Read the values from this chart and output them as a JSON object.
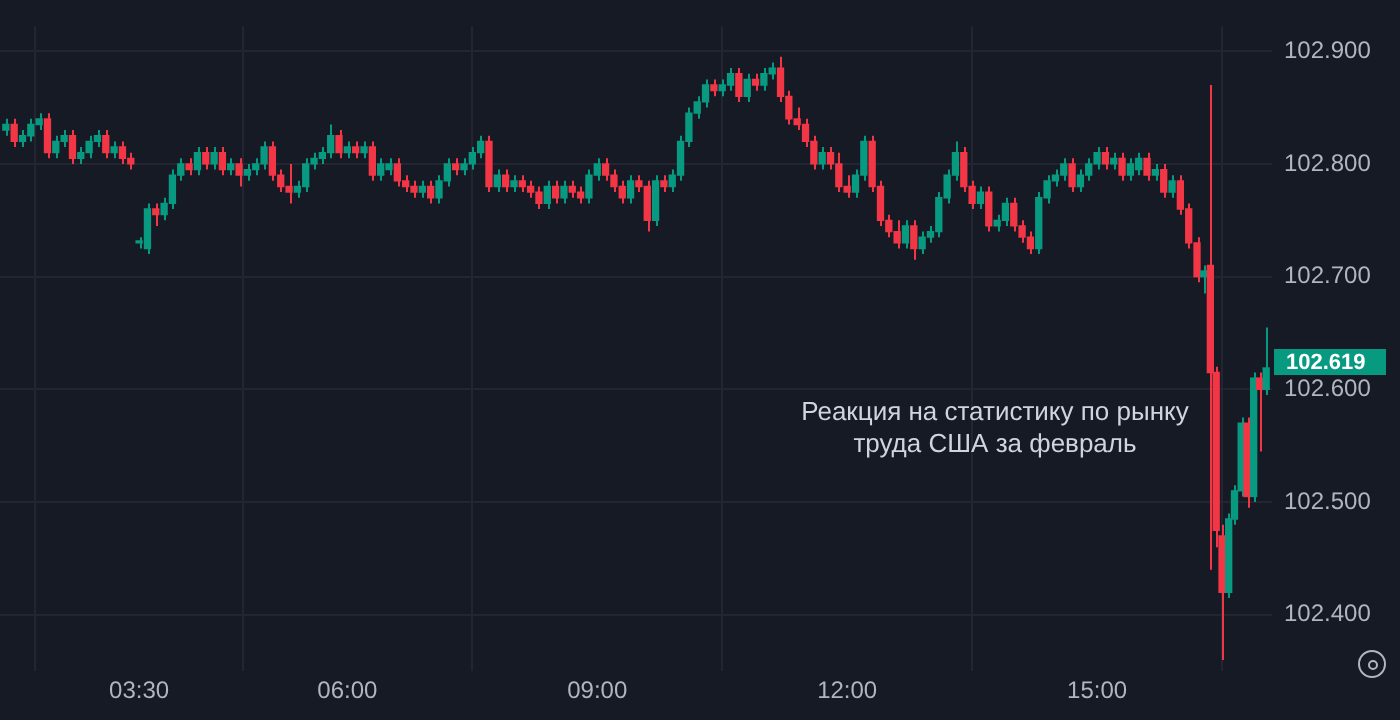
{
  "chart_data": {
    "type": "candlestick",
    "x": [
      1.9,
      2.0,
      2.1,
      2.2,
      2.3,
      2.4,
      2.5,
      2.6,
      2.7,
      2.8,
      2.9,
      3.0,
      3.1,
      3.2,
      3.3,
      3.4,
      3.5,
      3.6,
      3.7,
      3.8,
      3.9,
      4.0,
      4.1,
      4.2,
      4.3,
      4.4,
      4.5,
      4.6,
      4.7,
      4.8,
      4.9,
      5.0,
      5.1,
      5.2,
      5.3,
      5.4,
      5.5,
      5.6,
      5.7,
      5.8,
      5.9,
      6.0,
      6.1,
      6.2,
      6.3,
      6.4,
      6.5,
      6.6,
      6.7,
      6.8,
      6.9,
      7.0,
      7.1,
      7.2,
      7.3,
      7.4,
      7.5,
      7.6,
      7.7,
      7.8,
      7.9,
      8.0,
      8.1,
      8.2,
      8.3,
      8.4,
      8.5,
      8.6,
      8.7,
      8.8,
      8.9,
      9.0,
      9.1,
      9.2,
      9.3,
      9.4,
      9.5,
      9.6,
      9.7,
      9.8,
      9.9,
      10.0,
      10.1,
      10.2,
      10.3,
      10.4,
      10.5,
      10.6,
      10.7,
      10.8,
      10.9,
      11.0,
      11.1,
      11.2,
      11.3,
      11.4,
      11.5,
      11.6,
      11.7,
      11.8,
      11.9,
      12.0,
      12.1,
      12.2,
      12.3,
      12.4,
      12.5,
      12.6,
      12.7,
      12.8,
      12.9,
      13.0,
      13.1,
      13.2,
      13.3,
      13.4,
      13.5,
      13.6,
      13.7,
      13.8,
      13.9,
      14.0,
      14.1,
      14.2,
      14.3,
      14.4,
      14.5,
      14.6,
      14.7,
      14.8,
      14.9,
      15.0,
      15.1,
      15.2,
      15.3,
      15.4,
      15.5,
      15.6,
      15.7,
      15.8,
      15.9,
      16.0,
      16.1,
      16.2,
      16.28,
      16.36,
      16.43,
      16.5,
      16.58,
      16.65,
      16.73,
      16.8,
      16.88,
      16.95,
      17.03
    ],
    "ohlc": [
      [
        102.83,
        102.84,
        102.825,
        102.835
      ],
      [
        102.835,
        102.84,
        102.815,
        102.82
      ],
      [
        102.82,
        102.83,
        102.815,
        102.825
      ],
      [
        102.825,
        102.84,
        102.82,
        102.835
      ],
      [
        102.835,
        102.845,
        102.83,
        102.84
      ],
      [
        102.84,
        102.845,
        102.805,
        102.81
      ],
      [
        102.81,
        102.825,
        102.805,
        102.82
      ],
      [
        102.82,
        102.83,
        102.815,
        102.825
      ],
      [
        102.825,
        102.83,
        102.8,
        102.805
      ],
      [
        102.805,
        102.815,
        102.8,
        102.81
      ],
      [
        102.81,
        102.825,
        102.805,
        102.82
      ],
      [
        102.82,
        102.83,
        102.815,
        102.825
      ],
      [
        102.825,
        102.83,
        102.805,
        102.81
      ],
      [
        102.81,
        102.82,
        102.805,
        102.815
      ],
      [
        102.815,
        102.82,
        102.8,
        102.805
      ],
      [
        102.805,
        102.81,
        102.795,
        102.8
      ],
      [
        102.73,
        102.735,
        102.725,
        102.73
      ],
      [
        102.725,
        102.765,
        102.72,
        102.76
      ],
      [
        102.76,
        102.765,
        102.745,
        102.755
      ],
      [
        102.755,
        102.77,
        102.75,
        102.765
      ],
      [
        102.765,
        102.795,
        102.76,
        102.79
      ],
      [
        102.79,
        102.805,
        102.785,
        102.8
      ],
      [
        102.8,
        102.805,
        102.79,
        102.795
      ],
      [
        102.795,
        102.815,
        102.79,
        102.81
      ],
      [
        102.81,
        102.815,
        102.795,
        102.8
      ],
      [
        102.8,
        102.815,
        102.795,
        102.81
      ],
      [
        102.81,
        102.815,
        102.79,
        102.795
      ],
      [
        102.795,
        102.805,
        102.79,
        102.8
      ],
      [
        102.8,
        102.805,
        102.78,
        102.79
      ],
      [
        102.79,
        102.8,
        102.785,
        102.795
      ],
      [
        102.795,
        102.805,
        102.79,
        102.8
      ],
      [
        102.8,
        102.82,
        102.795,
        102.815
      ],
      [
        102.815,
        102.82,
        102.785,
        102.79
      ],
      [
        102.79,
        102.795,
        102.775,
        102.78
      ],
      [
        102.78,
        102.8,
        102.765,
        102.775
      ],
      [
        102.775,
        102.785,
        102.77,
        102.78
      ],
      [
        102.78,
        102.805,
        102.775,
        102.8
      ],
      [
        102.8,
        102.81,
        102.795,
        102.805
      ],
      [
        102.805,
        102.815,
        102.8,
        102.81
      ],
      [
        102.81,
        102.835,
        102.805,
        102.825
      ],
      [
        102.825,
        102.83,
        102.805,
        102.81
      ],
      [
        102.81,
        102.82,
        102.805,
        102.815
      ],
      [
        102.815,
        102.82,
        102.805,
        102.81
      ],
      [
        102.81,
        102.82,
        102.805,
        102.815
      ],
      [
        102.815,
        102.82,
        102.785,
        102.79
      ],
      [
        102.79,
        102.805,
        102.785,
        102.8
      ],
      [
        102.795,
        102.805,
        102.79,
        102.8
      ],
      [
        102.8,
        102.805,
        102.78,
        102.785
      ],
      [
        102.785,
        102.79,
        102.775,
        102.78
      ],
      [
        102.78,
        102.785,
        102.77,
        102.775
      ],
      [
        102.775,
        102.785,
        102.77,
        102.78
      ],
      [
        102.78,
        102.785,
        102.765,
        102.77
      ],
      [
        102.77,
        102.79,
        102.765,
        102.785
      ],
      [
        102.785,
        102.805,
        102.78,
        102.8
      ],
      [
        102.8,
        102.805,
        102.79,
        102.795
      ],
      [
        102.795,
        102.805,
        102.79,
        102.8
      ],
      [
        102.8,
        102.815,
        102.795,
        102.81
      ],
      [
        102.81,
        102.825,
        102.805,
        102.82
      ],
      [
        102.82,
        102.825,
        102.775,
        102.78
      ],
      [
        102.78,
        102.795,
        102.775,
        102.79
      ],
      [
        102.79,
        102.795,
        102.775,
        102.78
      ],
      [
        102.78,
        102.79,
        102.775,
        102.785
      ],
      [
        102.785,
        102.79,
        102.775,
        102.78
      ],
      [
        102.78,
        102.785,
        102.77,
        102.775
      ],
      [
        102.775,
        102.78,
        102.76,
        102.765
      ],
      [
        102.765,
        102.785,
        102.76,
        102.78
      ],
      [
        102.78,
        102.785,
        102.765,
        102.77
      ],
      [
        102.77,
        102.785,
        102.765,
        102.78
      ],
      [
        102.78,
        102.785,
        102.77,
        102.775
      ],
      [
        102.775,
        102.78,
        102.765,
        102.77
      ],
      [
        102.77,
        102.795,
        102.765,
        102.79
      ],
      [
        102.79,
        102.805,
        102.785,
        102.8
      ],
      [
        102.8,
        102.805,
        102.785,
        102.79
      ],
      [
        102.79,
        102.795,
        102.775,
        102.78
      ],
      [
        102.78,
        102.785,
        102.765,
        102.77
      ],
      [
        102.77,
        102.79,
        102.765,
        102.785
      ],
      [
        102.785,
        102.79,
        102.775,
        102.78
      ],
      [
        102.78,
        102.785,
        102.74,
        102.75
      ],
      [
        102.75,
        102.79,
        102.745,
        102.785
      ],
      [
        102.785,
        102.79,
        102.775,
        102.78
      ],
      [
        102.78,
        102.795,
        102.775,
        102.79
      ],
      [
        102.79,
        102.825,
        102.785,
        102.82
      ],
      [
        102.82,
        102.85,
        102.815,
        102.845
      ],
      [
        102.845,
        102.86,
        102.84,
        102.855
      ],
      [
        102.855,
        102.875,
        102.85,
        102.87
      ],
      [
        102.87,
        102.875,
        102.86,
        102.865
      ],
      [
        102.865,
        102.875,
        102.86,
        102.87
      ],
      [
        102.87,
        102.885,
        102.865,
        102.88
      ],
      [
        102.88,
        102.885,
        102.855,
        102.86
      ],
      [
        102.86,
        102.88,
        102.855,
        102.875
      ],
      [
        102.875,
        102.88,
        102.865,
        102.87
      ],
      [
        102.87,
        102.885,
        102.865,
        102.88
      ],
      [
        102.88,
        102.89,
        102.875,
        102.885
      ],
      [
        102.885,
        102.895,
        102.855,
        102.86
      ],
      [
        102.86,
        102.865,
        102.835,
        102.84
      ],
      [
        102.84,
        102.85,
        102.83,
        102.835
      ],
      [
        102.835,
        102.84,
        102.815,
        102.82
      ],
      [
        102.82,
        102.825,
        102.795,
        102.8
      ],
      [
        102.8,
        102.815,
        102.795,
        102.81
      ],
      [
        102.81,
        102.815,
        102.795,
        102.8
      ],
      [
        102.8,
        102.81,
        102.775,
        102.78
      ],
      [
        102.78,
        102.79,
        102.77,
        102.775
      ],
      [
        102.775,
        102.795,
        102.77,
        102.79
      ],
      [
        102.79,
        102.825,
        102.785,
        102.82
      ],
      [
        102.82,
        102.825,
        102.775,
        102.78
      ],
      [
        102.78,
        102.785,
        102.745,
        102.75
      ],
      [
        102.75,
        102.755,
        102.735,
        102.74
      ],
      [
        102.74,
        102.75,
        102.725,
        102.73
      ],
      [
        102.73,
        102.75,
        102.725,
        102.745
      ],
      [
        102.745,
        102.75,
        102.715,
        102.725
      ],
      [
        102.725,
        102.74,
        102.72,
        102.735
      ],
      [
        102.735,
        102.745,
        102.73,
        102.74
      ],
      [
        102.74,
        102.775,
        102.735,
        102.77
      ],
      [
        102.77,
        102.795,
        102.765,
        102.79
      ],
      [
        102.79,
        102.82,
        102.785,
        102.81
      ],
      [
        102.81,
        102.815,
        102.775,
        102.78
      ],
      [
        102.78,
        102.785,
        102.76,
        102.765
      ],
      [
        102.765,
        102.78,
        102.76,
        102.775
      ],
      [
        102.775,
        102.78,
        102.74,
        102.745
      ],
      [
        102.745,
        102.755,
        102.74,
        102.75
      ],
      [
        102.75,
        102.77,
        102.745,
        102.765
      ],
      [
        102.765,
        102.77,
        102.74,
        102.745
      ],
      [
        102.745,
        102.75,
        102.73,
        102.735
      ],
      [
        102.735,
        102.74,
        102.72,
        102.725
      ],
      [
        102.725,
        102.775,
        102.72,
        102.77
      ],
      [
        102.77,
        102.79,
        102.765,
        102.785
      ],
      [
        102.785,
        102.795,
        102.78,
        102.79
      ],
      [
        102.79,
        102.805,
        102.785,
        102.8
      ],
      [
        102.8,
        102.805,
        102.775,
        102.78
      ],
      [
        102.78,
        102.795,
        102.775,
        102.79
      ],
      [
        102.79,
        102.805,
        102.785,
        102.8
      ],
      [
        102.8,
        102.815,
        102.795,
        102.81
      ],
      [
        102.81,
        102.815,
        102.795,
        102.8
      ],
      [
        102.8,
        102.81,
        102.795,
        102.805
      ],
      [
        102.805,
        102.81,
        102.785,
        102.79
      ],
      [
        102.79,
        102.805,
        102.785,
        102.8
      ],
      [
        102.795,
        102.81,
        102.79,
        102.805
      ],
      [
        102.805,
        102.81,
        102.785,
        102.79
      ],
      [
        102.79,
        102.8,
        102.785,
        102.795
      ],
      [
        102.795,
        102.8,
        102.77,
        102.775
      ],
      [
        102.775,
        102.79,
        102.77,
        102.785
      ],
      [
        102.785,
        102.79,
        102.755,
        102.76
      ],
      [
        102.76,
        102.765,
        102.725,
        102.73
      ],
      [
        102.73,
        102.735,
        102.695,
        102.7
      ],
      [
        102.7,
        102.71,
        102.685,
        102.705
      ],
      [
        102.71,
        102.87,
        102.44,
        102.615
      ],
      [
        102.615,
        102.62,
        102.46,
        102.475
      ],
      [
        102.47,
        102.48,
        102.36,
        102.42
      ],
      [
        102.42,
        102.49,
        102.415,
        102.485
      ],
      [
        102.485,
        102.515,
        102.48,
        102.51
      ],
      [
        102.51,
        102.575,
        102.505,
        102.57
      ],
      [
        102.57,
        102.575,
        102.495,
        102.505
      ],
      [
        102.505,
        102.615,
        102.5,
        102.61
      ],
      [
        102.61,
        102.615,
        102.545,
        102.6
      ],
      [
        102.6,
        102.655,
        102.595,
        102.619
      ]
    ],
    "colors": [
      "#089981",
      "#f23645",
      "#089981",
      "#089981",
      "#089981",
      "#f23645",
      "#089981",
      "#089981",
      "#f23645",
      "#089981",
      "#089981",
      "#089981",
      "#f23645",
      "#089981",
      "#f23645",
      "#f23645",
      "#089981",
      "#089981",
      "#f23645",
      "#089981",
      "#089981",
      "#089981",
      "#f23645",
      "#089981",
      "#f23645",
      "#089981",
      "#f23645",
      "#089981",
      "#f23645",
      "#089981",
      "#089981",
      "#089981",
      "#f23645",
      "#f23645",
      "#f23645",
      "#089981",
      "#089981",
      "#089981",
      "#089981",
      "#089981",
      "#f23645",
      "#089981",
      "#f23645",
      "#089981",
      "#f23645",
      "#089981",
      "#089981",
      "#f23645",
      "#f23645",
      "#f23645",
      "#089981",
      "#f23645",
      "#089981",
      "#089981",
      "#f23645",
      "#089981",
      "#089981",
      "#089981",
      "#f23645",
      "#089981",
      "#f23645",
      "#089981",
      "#f23645",
      "#f23645",
      "#f23645",
      "#089981",
      "#f23645",
      "#089981",
      "#f23645",
      "#f23645",
      "#089981",
      "#089981",
      "#f23645",
      "#f23645",
      "#f23645",
      "#089981",
      "#f23645",
      "#f23645",
      "#089981",
      "#f23645",
      "#089981",
      "#089981",
      "#089981",
      "#089981",
      "#089981",
      "#f23645",
      "#089981",
      "#089981",
      "#f23645",
      "#089981",
      "#f23645",
      "#089981",
      "#089981",
      "#f23645",
      "#f23645",
      "#f23645",
      "#f23645",
      "#f23645",
      "#089981",
      "#f23645",
      "#f23645",
      "#f23645",
      "#089981",
      "#089981",
      "#f23645",
      "#f23645",
      "#f23645",
      "#f23645",
      "#089981",
      "#f23645",
      "#089981",
      "#089981",
      "#089981",
      "#089981",
      "#089981",
      "#f23645",
      "#f23645",
      "#089981",
      "#f23645",
      "#089981",
      "#089981",
      "#f23645",
      "#f23645",
      "#f23645",
      "#089981",
      "#089981",
      "#089981",
      "#089981",
      "#f23645",
      "#089981",
      "#089981",
      "#089981",
      "#f23645",
      "#089981",
      "#f23645",
      "#089981",
      "#089981",
      "#f23645",
      "#089981",
      "#f23645",
      "#089981",
      "#f23645",
      "#f23645",
      "#f23645",
      "#089981",
      "#f23645",
      "#f23645",
      "#f23645",
      "#089981",
      "#089981",
      "#089981",
      "#f23645",
      "#089981",
      "#f23645",
      "#089981"
    ],
    "xlim": [
      1.83,
      17.1
    ],
    "xticks": [
      {
        "value": 3.5,
        "label": "03:30"
      },
      {
        "value": 6,
        "label": "06:00"
      },
      {
        "value": 9,
        "label": "09:00"
      },
      {
        "value": 12,
        "label": "12:00"
      },
      {
        "value": 15,
        "label": "15:00"
      }
    ],
    "ylim": [
      102.35,
      102.922
    ],
    "yticks": [
      {
        "value": 102.4,
        "label": "102.400"
      },
      {
        "value": 102.5,
        "label": "102.500"
      },
      {
        "value": 102.6,
        "label": "102.600"
      },
      {
        "value": 102.7,
        "label": "102.700"
      },
      {
        "value": 102.8,
        "label": "102.800"
      },
      {
        "value": 102.9,
        "label": "102.900"
      }
    ],
    "grid": true,
    "annotations": [
      "Реакция на статистику по рынку труда США за февраль",
      "102.619"
    ]
  }
}
